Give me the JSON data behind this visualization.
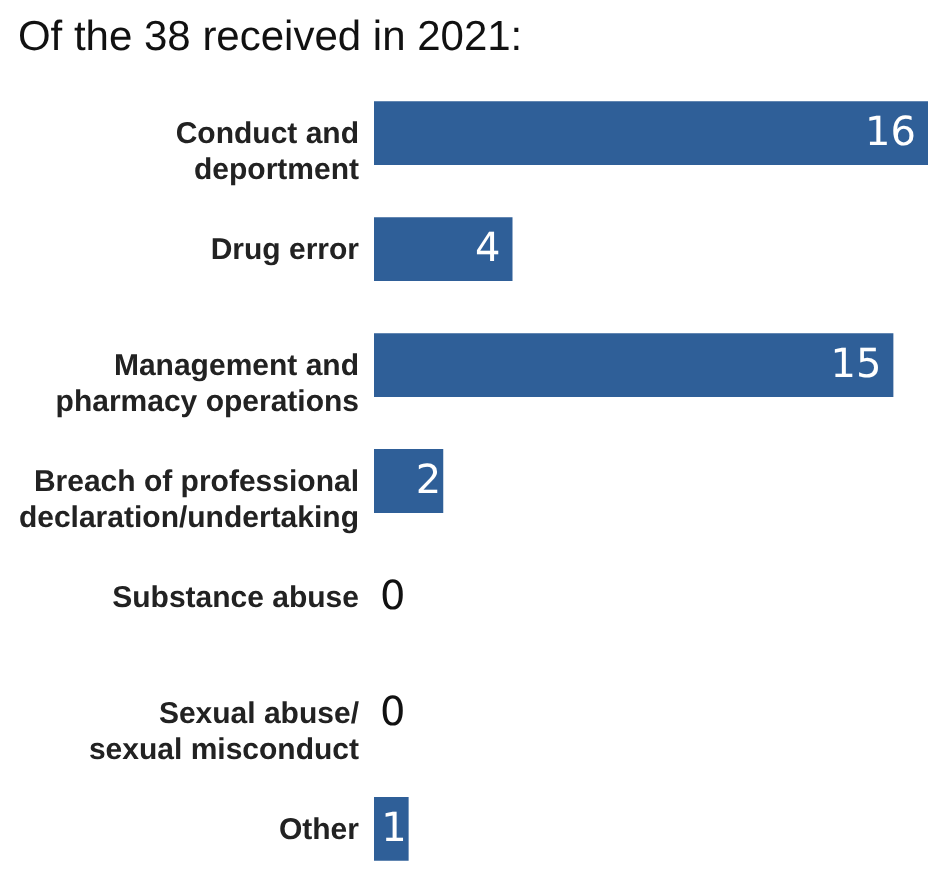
{
  "chart_data": {
    "type": "bar",
    "orientation": "horizontal",
    "title": "Of the 38 received in 2021:",
    "categories": [
      "Conduct and deportment",
      "Drug error",
      "Management and pharmacy operations",
      "Breach of professional declaration/undertaking",
      "Substance abuse",
      "Sexual abuse/ sexual misconduct",
      "Other"
    ],
    "values": [
      16,
      4,
      15,
      2,
      0,
      0,
      1
    ],
    "color": "#2f5f98",
    "data_labels": true,
    "grid": false
  }
}
